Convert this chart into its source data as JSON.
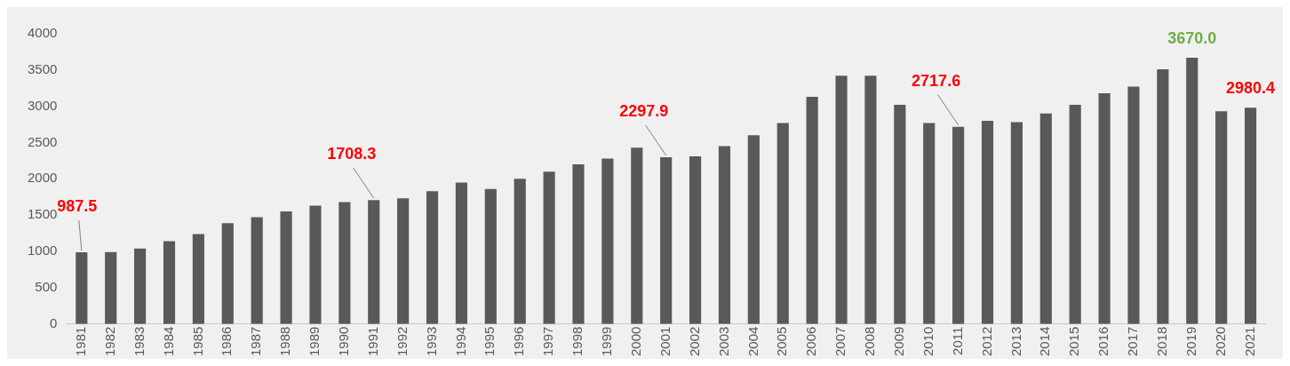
{
  "chart_data": {
    "type": "bar",
    "categories": [
      "1981",
      "1982",
      "1983",
      "1984",
      "1985",
      "1986",
      "1987",
      "1988",
      "1989",
      "1990",
      "1991",
      "1992",
      "1993",
      "1994",
      "1995",
      "1996",
      "1997",
      "1998",
      "1999",
      "2000",
      "2001",
      "2002",
      "2003",
      "2004",
      "2005",
      "2006",
      "2007",
      "2008",
      "2009",
      "2010",
      "2011",
      "2012",
      "2013",
      "2014",
      "2015",
      "2016",
      "2017",
      "2018",
      "2019",
      "2020",
      "2021"
    ],
    "values": [
      987.5,
      990,
      1040,
      1140,
      1240,
      1390,
      1470,
      1550,
      1630,
      1680,
      1708.3,
      1730,
      1830,
      1950,
      1860,
      2000,
      2100,
      2200,
      2280,
      2430,
      2297.9,
      2310,
      2450,
      2600,
      2770,
      3130,
      3420,
      3420,
      3020,
      2770,
      2717.6,
      2800,
      2780,
      2900,
      3020,
      3180,
      3270,
      3510,
      3670.0,
      2930,
      2980.4
    ],
    "value_labels": [
      "987.5",
      null,
      null,
      null,
      null,
      null,
      null,
      null,
      null,
      null,
      "1708.3",
      null,
      null,
      null,
      null,
      null,
      null,
      null,
      null,
      null,
      "2297.9",
      null,
      null,
      null,
      null,
      null,
      null,
      null,
      null,
      null,
      "2717.6",
      null,
      null,
      null,
      null,
      null,
      null,
      null,
      "3670.0",
      null,
      "2980.4"
    ],
    "color": "#595959",
    "ylim": [
      0,
      4000
    ],
    "yticks": [
      0,
      500,
      1000,
      1500,
      2000,
      2500,
      3000,
      3500,
      4000
    ],
    "grid": false,
    "legend": false
  }
}
